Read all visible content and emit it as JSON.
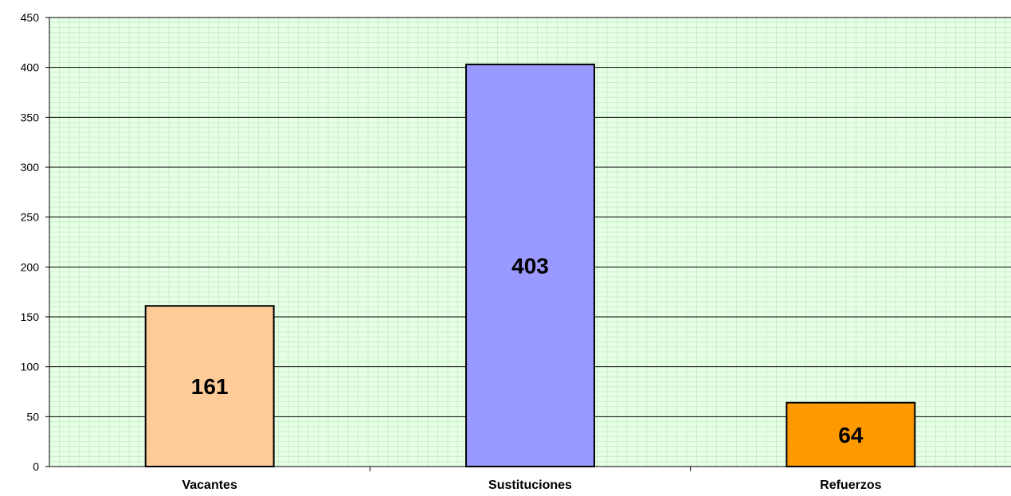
{
  "chart_data": {
    "type": "bar",
    "title": "",
    "xlabel": "",
    "ylabel": "",
    "categories": [
      "Vacantes",
      "Sustituciones",
      "Refuerzos"
    ],
    "values": [
      161,
      403,
      64
    ],
    "data_labels": [
      "161",
      "403",
      "64"
    ],
    "bar_colors": [
      "#FFCC99",
      "#9999FF",
      "#FF9900"
    ],
    "ylim": [
      0,
      450
    ],
    "yticks": [
      0,
      50,
      100,
      150,
      200,
      250,
      300,
      350,
      400,
      450
    ],
    "ytick_labels": [
      "0",
      "50",
      "100",
      "150",
      "200",
      "250",
      "300",
      "350",
      "400",
      "450"
    ],
    "grid": true,
    "legend": "none",
    "plot_background": "#E6FFE6",
    "minor_grid_color": "#C8F0C8",
    "major_grid_color": "#000000"
  }
}
